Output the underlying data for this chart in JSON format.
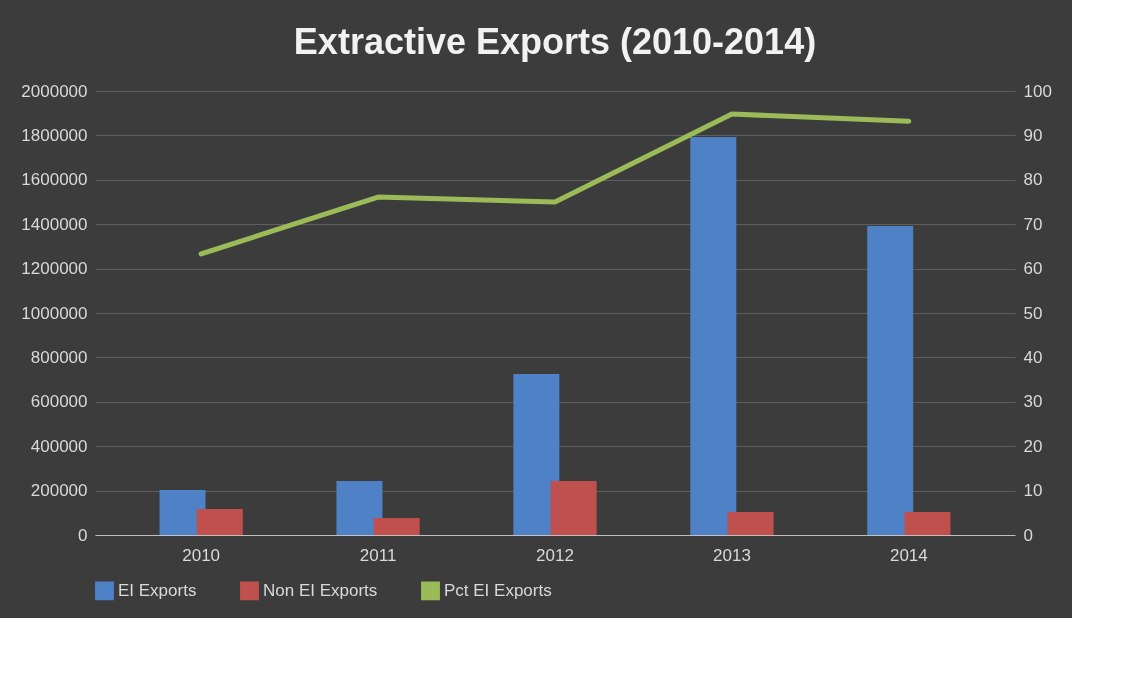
{
  "chart_data": {
    "type": "bar",
    "title": "Extractive Exports (2010-2014)",
    "categories": [
      "2010",
      "2011",
      "2012",
      "2013",
      "2014"
    ],
    "series": [
      {
        "name": "EI Exports",
        "color": "#4f81c7",
        "values": [
          203000,
          243000,
          725000,
          1793000,
          1392000
        ]
      },
      {
        "name": "Non EI Exports",
        "color": "#c0504d",
        "values": [
          117000,
          77000,
          243000,
          104000,
          104000
        ]
      },
      {
        "name": "Pct EI Exports",
        "color": "#9bbb59",
        "type": "line",
        "axis": "y2",
        "values": [
          63.3,
          76.1,
          75.0,
          94.8,
          93.2
        ]
      }
    ],
    "ylim": [
      0,
      2000000
    ],
    "yticks": [
      0,
      200000,
      400000,
      600000,
      800000,
      1000000,
      1200000,
      1400000,
      1600000,
      1800000,
      2000000
    ],
    "y2lim": [
      0,
      100
    ],
    "y2ticks": [
      0,
      10,
      20,
      30,
      40,
      50,
      60,
      70,
      80,
      90,
      100
    ],
    "grid": "y",
    "legend": "bottom"
  }
}
